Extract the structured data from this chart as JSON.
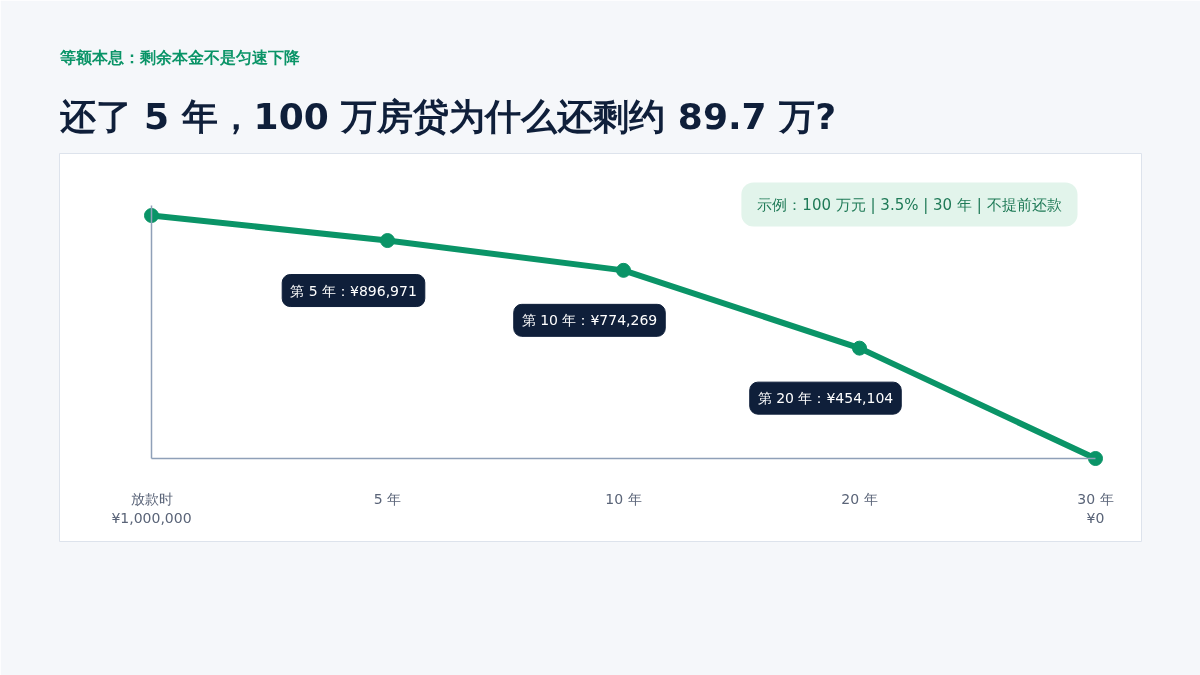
{
  "chart_data": {
    "type": "line",
    "subtitle": "等额本息：剩余本金不是匀速下降",
    "title": "还了 5 年，100 万房贷为什么还剩约 89.7 万?",
    "categories": [
      "放款时\n¥1,000,000",
      "5 年",
      "10 年",
      "20 年",
      "30 年\n¥0"
    ],
    "values": [
      1000000,
      896971,
      774269,
      454104,
      0
    ],
    "value_labels": [
      null,
      "第 5 年：¥896,971",
      "第 10 年：¥774,269",
      "第 20 年：¥454,104",
      null
    ],
    "color": "#0a9467",
    "marker": "circle",
    "line_style": "solid",
    "tick_labels": "x",
    "annotations": [
      "示例：100 万元 | 3.5% | 30 年 | 不提前还款"
    ]
  }
}
